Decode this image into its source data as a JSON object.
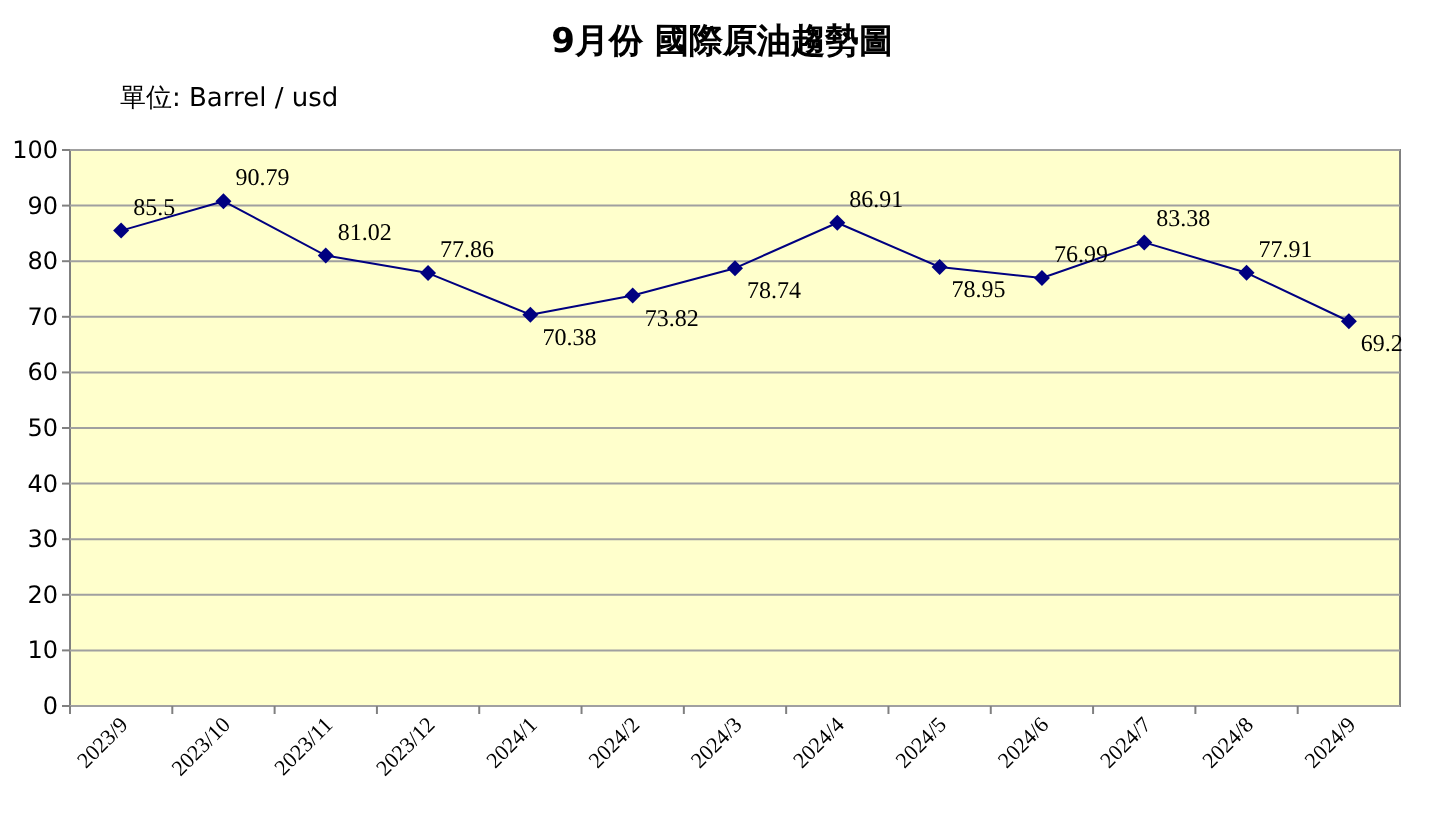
{
  "chart_data": {
    "type": "line",
    "title": "9月份 國際原油趨勢圖",
    "subtitle": "單位: Barrel / usd",
    "categories": [
      "2023/9",
      "2023/10",
      "2023/11",
      "2023/12",
      "2024/1",
      "2024/2",
      "2024/3",
      "2024/4",
      "2024/5",
      "2024/6",
      "2024/7",
      "2024/8",
      "2024/9"
    ],
    "series": [
      {
        "color": "#000080",
        "values": [
          85.5,
          90.79,
          81.02,
          77.86,
          70.38,
          73.82,
          78.74,
          86.91,
          78.95,
          76.99,
          83.38,
          77.91,
          69.2
        ]
      }
    ],
    "ylim": [
      0,
      100
    ],
    "yticks": [
      0,
      10,
      20,
      30,
      40,
      50,
      60,
      70,
      80,
      90,
      100
    ],
    "grid": "y",
    "marker": "diamond",
    "data_labels": true
  }
}
